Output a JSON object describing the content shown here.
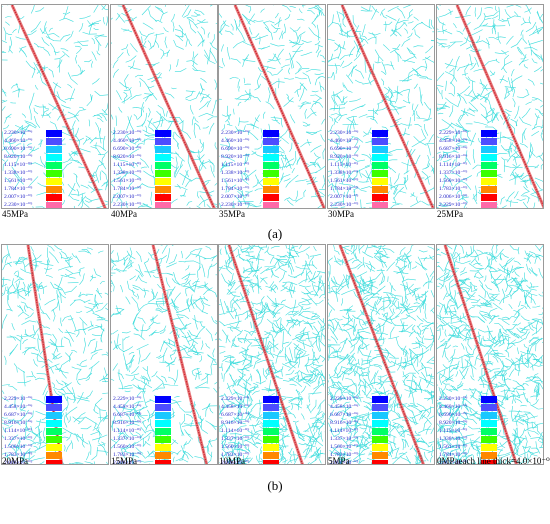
{
  "row_a": {
    "caption": "(a)",
    "panels": [
      {
        "label": "45MPa",
        "legend": [
          "2.230×10⁻⁰⁶",
          "4.460×10⁻⁰⁶",
          "6.690×10⁻⁰⁶",
          "8.920×10⁻⁰⁶",
          "1.115×10⁻⁰⁵",
          "1.338×10⁻⁰⁵",
          "1.561×10⁻⁰⁵",
          "1.784×10⁻⁰⁵",
          "2.007×10⁻⁰⁵",
          "2.230×10⁻⁰⁵",
          "2.453×10⁻⁰⁵"
        ]
      },
      {
        "label": "40MPa",
        "legend": [
          "2.230×10⁻⁰⁶",
          "4.460×10⁻⁰⁶",
          "6.690×10⁻⁰⁶",
          "8.920×10⁻⁰⁶",
          "1.115×10⁻⁰⁵",
          "1.338×10⁻⁰⁵",
          "1.561×10⁻⁰⁵",
          "1.784×10⁻⁰⁵",
          "2.007×10⁻⁰⁵",
          "2.230×10⁻⁰⁵",
          "2.453×10⁻⁰⁵"
        ]
      },
      {
        "label": "35MPa",
        "legend": [
          "2.230×10⁻⁰⁶",
          "4.460×10⁻⁰⁶",
          "6.690×10⁻⁰⁶",
          "8.920×10⁻⁰⁶",
          "1.115×10⁻⁰⁵",
          "1.338×10⁻⁰⁵",
          "1.561×10⁻⁰⁵",
          "1.784×10⁻⁰⁵",
          "2.007×10⁻⁰⁵",
          "2.230×10⁻⁰⁵",
          "2.453×10⁻⁰⁵"
        ]
      },
      {
        "label": "30MPa",
        "legend": [
          "2.230×10⁻⁰⁶",
          "4.460×10⁻⁰⁶",
          "6.690×10⁻⁰⁶",
          "8.920×10⁻⁰⁶",
          "1.115×10⁻⁰⁵",
          "1.338×10⁻⁰⁵",
          "1.561×10⁻⁰⁵",
          "1.784×10⁻⁰⁵",
          "2.007×10⁻⁰⁵",
          "2.230×10⁻⁰⁵",
          "2.453×10⁻⁰⁵"
        ]
      },
      {
        "label": "25MPa",
        "legend": [
          "2.229×10⁻⁰⁶",
          "4.458×10⁻⁰⁶",
          "6.687×10⁻⁰⁶",
          "8.916×10⁻⁰⁶",
          "1.114×10⁻⁰⁵",
          "1.337×10⁻⁰⁵",
          "1.560×10⁻⁰⁵",
          "1.783×10⁻⁰⁵",
          "2.006×10⁻⁰⁵",
          "2.229×10⁻⁰⁵",
          "2.452×10⁻⁰⁵"
        ]
      }
    ]
  },
  "row_b": {
    "caption": "(b)",
    "panels": [
      {
        "label": "20MPa",
        "legend": [
          "2.229×10⁻⁰⁶",
          "4.458×10⁻⁰⁶",
          "6.687×10⁻⁰⁶",
          "8.916×10⁻⁰⁶",
          "1.114×10⁻⁰⁵",
          "1.337×10⁻⁰⁵",
          "1.560×10⁻⁰⁵",
          "1.783×10⁻⁰⁵",
          "2.006×10⁻⁰⁵",
          "2.229×10⁻⁰⁵",
          "2.452×10⁻⁰⁵"
        ]
      },
      {
        "label": "15MPa",
        "legend": [
          "2.229×10⁻⁰⁶",
          "4.458×10⁻⁰⁶",
          "6.687×10⁻⁰⁶",
          "8.916×10⁻⁰⁶",
          "1.114×10⁻⁰⁵",
          "1.337×10⁻⁰⁵",
          "1.560×10⁻⁰⁵",
          "1.783×10⁻⁰⁵",
          "2.006×10⁻⁰⁵",
          "2.229×10⁻⁰⁵",
          "2.452×10⁻⁰⁵"
        ]
      },
      {
        "label": "10MPa",
        "legend": [
          "2.229×10⁻⁰⁶",
          "4.458×10⁻⁰⁶",
          "6.687×10⁻⁰⁶",
          "8.916×10⁻⁰⁶",
          "1.114×10⁻⁰⁵",
          "1.337×10⁻⁰⁵",
          "1.560×10⁻⁰⁵",
          "1.783×10⁻⁰⁵",
          "2.006×10⁻⁰⁵",
          "2.229×10⁻⁰⁵",
          "2.452×10⁻⁰⁵"
        ]
      },
      {
        "label": "5MPa",
        "legend": [
          "2.229×10⁻⁰⁶",
          "4.458×10⁻⁰⁶",
          "6.687×10⁻⁰⁶",
          "8.916×10⁻⁰⁶",
          "1.114×10⁻⁰⁵",
          "1.337×10⁻⁰⁵",
          "1.560×10⁻⁰⁵",
          "1.783×10⁻⁰⁵",
          "2.006×10⁻⁰⁵",
          "2.229×10⁻⁰⁵",
          "2.452×10⁻⁰⁵"
        ]
      },
      {
        "label": "0MPaeach line thick=4.0×10⁻⁰⁶",
        "legend": [
          "2.230×10⁻⁰⁶",
          "4.460×10⁻⁰⁶",
          "6.690×10⁻⁰⁶",
          "8.920×10⁻⁰⁶",
          "1.115×10⁻⁰⁵",
          "1.338×10⁻⁰⁵",
          "1.561×10⁻⁰⁵",
          "1.784×10⁻⁰⁵",
          "2.007×10⁻⁰⁵",
          "2.230×10⁻⁰⁵",
          "2.453×10⁻⁰⁵"
        ]
      }
    ]
  },
  "colors": {
    "crack_lines": "#3cdcdc",
    "fault_band": "#e0494d",
    "legend_text": "#2323c8",
    "legend_swatches": [
      "#0000ff",
      "#4d4dff",
      "#19c8ff",
      "#00ffff",
      "#00ff66",
      "#3cff00",
      "#ffff00",
      "#ff8800",
      "#ff0000",
      "#ff6aa8",
      "#ff66ff"
    ]
  }
}
